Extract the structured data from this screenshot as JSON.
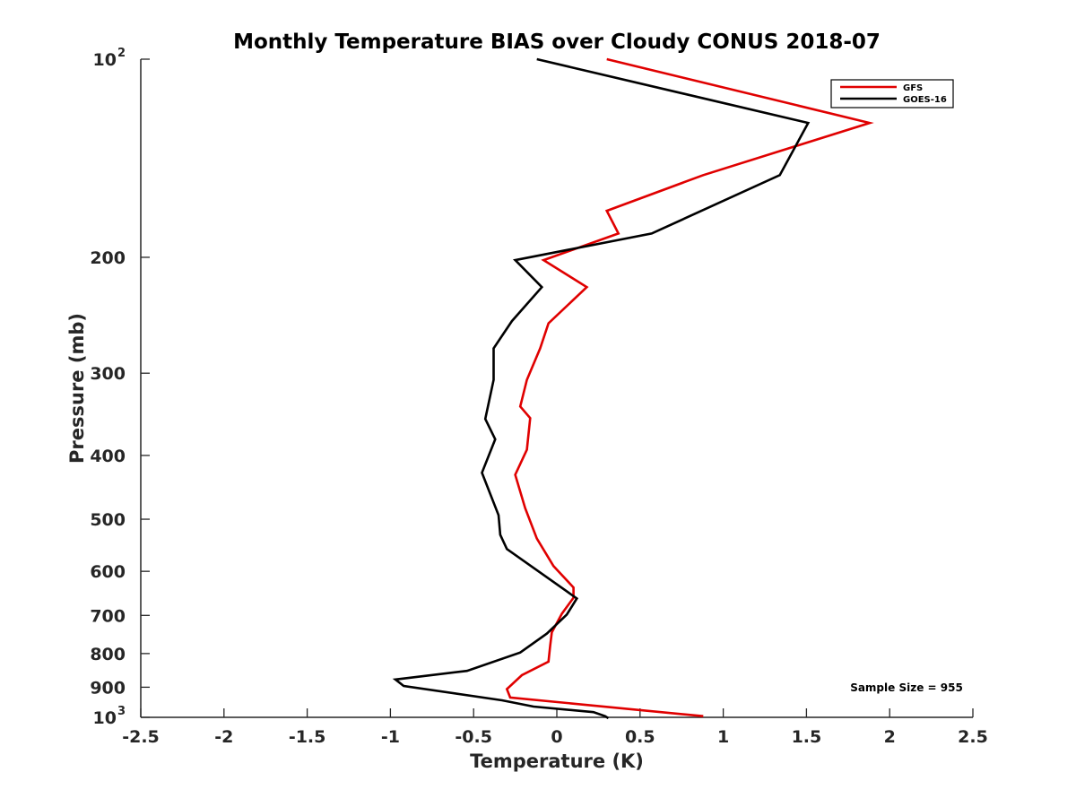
{
  "chart_data": {
    "type": "line",
    "title": "Monthly Temperature BIAS over Cloudy CONUS  2018-07",
    "xlabel": "Temperature (K)",
    "ylabel": "Pressure (mb)",
    "xlim": [
      -2.5,
      2.5
    ],
    "ylim": [
      100,
      1000
    ],
    "y_scale": "log",
    "y_reversed": true,
    "grid": false,
    "legend_position": "top-right",
    "x_ticks": [
      "-2.5",
      "-2",
      "-1.5",
      "-1",
      "-0.5",
      "0",
      "0.5",
      "1",
      "1.5",
      "2",
      "2.5"
    ],
    "x_tick_values": [
      -2.5,
      -2,
      -1.5,
      -1,
      -0.5,
      0,
      0.5,
      1,
      1.5,
      2,
      2.5
    ],
    "y_ticks": [
      {
        "value": 100,
        "base": "10",
        "exp": "2"
      },
      {
        "value": 200,
        "label": "200"
      },
      {
        "value": 300,
        "label": "300"
      },
      {
        "value": 400,
        "label": "400"
      },
      {
        "value": 500,
        "label": "500"
      },
      {
        "value": 600,
        "label": "600"
      },
      {
        "value": 700,
        "label": "700"
      },
      {
        "value": 800,
        "label": "800"
      },
      {
        "value": 900,
        "label": "900"
      },
      {
        "value": 1000,
        "base": "10",
        "exp": "3"
      }
    ],
    "series": [
      {
        "name": "GFS",
        "color": "#e00000",
        "points": [
          [
            0.3,
            100
          ],
          [
            1.88,
            125
          ],
          [
            0.88,
            150
          ],
          [
            0.3,
            170
          ],
          [
            0.37,
            184
          ],
          [
            -0.08,
            202
          ],
          [
            0.18,
            222
          ],
          [
            -0.05,
            252
          ],
          [
            -0.1,
            275
          ],
          [
            -0.18,
            307
          ],
          [
            -0.22,
            337
          ],
          [
            -0.16,
            351
          ],
          [
            -0.18,
            392
          ],
          [
            -0.25,
            428
          ],
          [
            -0.19,
            481
          ],
          [
            -0.12,
            535
          ],
          [
            -0.02,
            589
          ],
          [
            0.1,
            635
          ],
          [
            0.1,
            658
          ],
          [
            0.03,
            696
          ],
          [
            -0.03,
            743
          ],
          [
            -0.04,
            778
          ],
          [
            -0.05,
            823
          ],
          [
            -0.21,
            863
          ],
          [
            -0.3,
            906
          ],
          [
            -0.28,
            933
          ],
          [
            0.88,
            996
          ]
        ]
      },
      {
        "name": "GOES-16",
        "color": "#000000",
        "points": [
          [
            -0.12,
            100
          ],
          [
            1.51,
            125
          ],
          [
            1.34,
            150
          ],
          [
            0.57,
            184
          ],
          [
            -0.25,
            202
          ],
          [
            -0.09,
            222
          ],
          [
            -0.27,
            250
          ],
          [
            -0.38,
            275
          ],
          [
            -0.38,
            307
          ],
          [
            -0.43,
            352
          ],
          [
            -0.37,
            378
          ],
          [
            -0.45,
            425
          ],
          [
            -0.35,
            493
          ],
          [
            -0.34,
            528
          ],
          [
            -0.3,
            555
          ],
          [
            0.05,
            641
          ],
          [
            0.12,
            660
          ],
          [
            0.06,
            698
          ],
          [
            -0.06,
            746
          ],
          [
            -0.22,
            797
          ],
          [
            -0.54,
            850
          ],
          [
            -0.97,
            876
          ],
          [
            -0.92,
            896
          ],
          [
            -0.33,
            942
          ],
          [
            -0.14,
            963
          ],
          [
            0.22,
            982
          ],
          [
            0.29,
            996
          ],
          [
            0.31,
            1003
          ]
        ]
      }
    ],
    "annotation": "Sample Size = 955"
  }
}
